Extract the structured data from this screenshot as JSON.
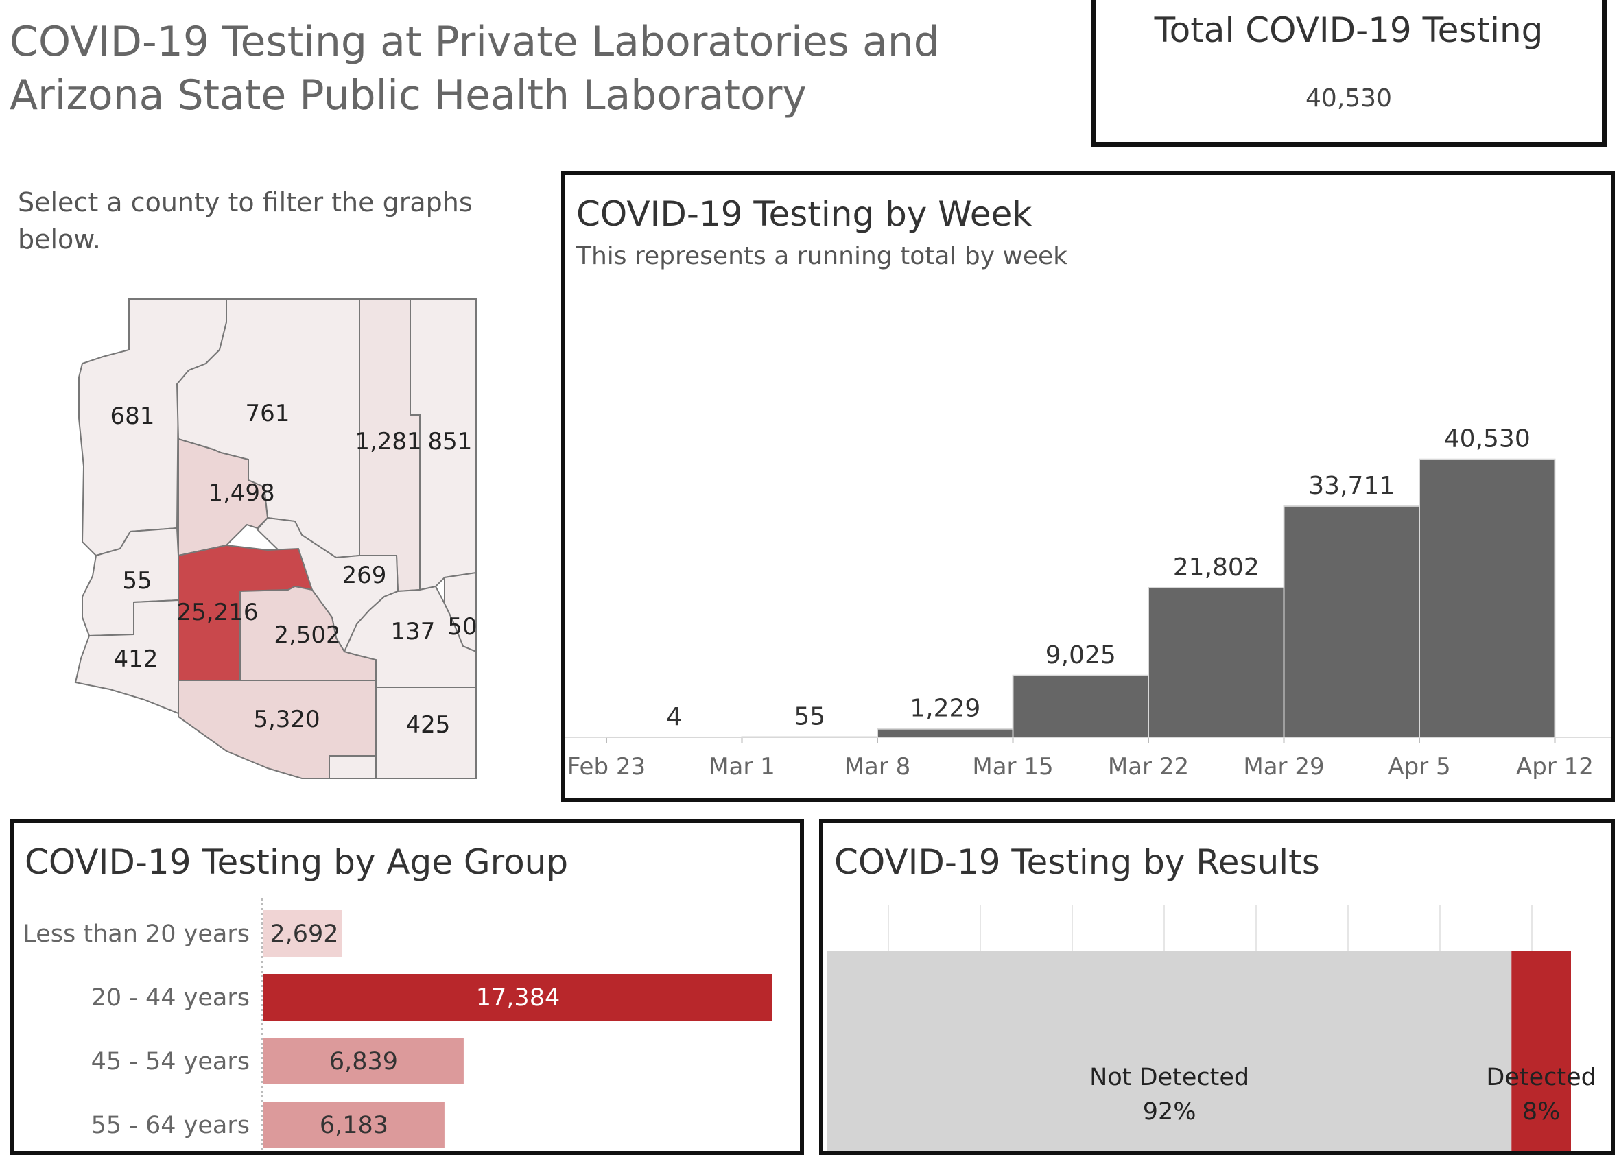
{
  "title": "COVID-19 Testing at Private Laboratories and Arizona State Public Health Laboratory",
  "total": {
    "label": "Total COVID-19 Testing",
    "value": "40,530"
  },
  "filter_instruction": "Select a county to filter the graphs below.",
  "map": {
    "counties": [
      {
        "value": "681"
      },
      {
        "value": "761"
      },
      {
        "value": "1,281"
      },
      {
        "value": "851"
      },
      {
        "value": "1,498"
      },
      {
        "value": "55"
      },
      {
        "value": "25,216"
      },
      {
        "value": "269"
      },
      {
        "value": "2,502"
      },
      {
        "value": "137"
      },
      {
        "value": "50"
      },
      {
        "value": "412"
      },
      {
        "value": "5,320"
      },
      {
        "value": "425"
      }
    ],
    "colors": {
      "low": "#f3eded",
      "mid": "#ecd6d6",
      "high": "#c9484c",
      "stroke": "#777777"
    }
  },
  "chart_data": [
    {
      "type": "bar",
      "title": "COVID-19 Testing by Week",
      "subtitle": "This represents a running total by week",
      "x_ticks": [
        "Feb 23",
        "Mar 1",
        "Mar 8",
        "Mar 15",
        "Mar 22",
        "Mar 29",
        "Apr 5",
        "Apr 12"
      ],
      "categories": [
        "Feb 23",
        "Mar 1",
        "Mar 8",
        "Mar 15",
        "Mar 22",
        "Mar 29",
        "Apr 5"
      ],
      "values": [
        4,
        55,
        1229,
        9025,
        21802,
        33711,
        40530
      ],
      "labels": [
        "4",
        "55",
        "1,229",
        "9,025",
        "21,802",
        "33,711",
        "40,530"
      ],
      "ylim": [
        0,
        46000
      ],
      "color": "#666666"
    },
    {
      "type": "bar",
      "orientation": "horizontal",
      "title": "COVID-19 Testing by Age Group",
      "categories": [
        "Less than 20 years",
        "20 - 44 years",
        "45 - 54 years",
        "55 - 64 years"
      ],
      "values": [
        2692,
        17384,
        6839,
        6183
      ],
      "labels": [
        "2,692",
        "17,384",
        "6,839",
        "6,183"
      ],
      "colors": [
        "#f0d4d4",
        "#b8272b",
        "#dc9a9b",
        "#dc9a9b"
      ]
    },
    {
      "type": "bar",
      "orientation": "stacked-horizontal",
      "title": "COVID-19 Testing by Results",
      "categories": [
        "Not Detected",
        "Detected"
      ],
      "values": [
        92,
        8
      ],
      "labels": [
        "92%",
        "8%"
      ],
      "colors": [
        "#d4d4d4",
        "#b8272b"
      ]
    }
  ]
}
